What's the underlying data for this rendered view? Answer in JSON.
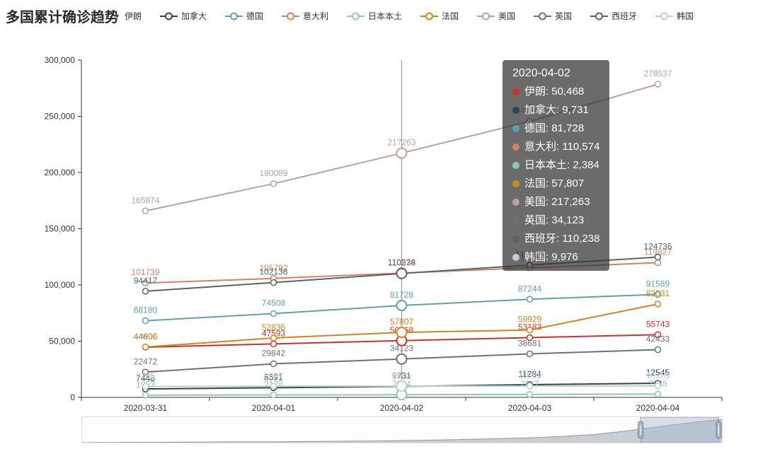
{
  "chart_data": {
    "type": "line",
    "title": "多国累计确诊趋势",
    "x": [
      "2020-03-31",
      "2020-04-01",
      "2020-04-02",
      "2020-04-03",
      "2020-04-04"
    ],
    "series": [
      {
        "key": "iran",
        "name": "伊朗",
        "color": "#c23531",
        "values": [
          44606,
          47593,
          50468,
          53183,
          55743
        ]
      },
      {
        "key": "canada",
        "name": "加拿大",
        "color": "#2f4554",
        "values": [
          7448,
          8591,
          9731,
          11284,
          12545
        ]
      },
      {
        "key": "germany",
        "name": "德国",
        "color": "#61a0a8",
        "values": [
          68180,
          74508,
          81728,
          87244,
          91589
        ]
      },
      {
        "key": "italy",
        "name": "意大利",
        "color": "#d48265",
        "values": [
          101739,
          105792,
          110574,
          115242,
          119827
        ]
      },
      {
        "key": "japan-mainland",
        "name": "日本本土",
        "color": "#91c7ae",
        "values": [
          1953,
          2178,
          2384,
          2617,
          2935
        ]
      },
      {
        "key": "france",
        "name": "法国",
        "color": "#ca8622",
        "values": [
          44806,
          52836,
          57807,
          59929,
          83031
        ]
      },
      {
        "key": "usa",
        "name": "美国",
        "color": "#bda29a",
        "values": [
          165874,
          190089,
          217263,
          245540,
          278537
        ]
      },
      {
        "key": "uk",
        "name": "英国",
        "color": "#6e7074",
        "values": [
          22472,
          29842,
          34123,
          38681,
          42433
        ]
      },
      {
        "key": "spain",
        "name": "西班牙",
        "color": "#546570",
        "values": [
          94417,
          102136,
          110238,
          117710,
          124736
        ]
      },
      {
        "key": "south-korea",
        "name": "韩国",
        "color": "#c4ccd3",
        "values": [
          9786,
          9887,
          9976,
          10062,
          10156
        ]
      }
    ],
    "ylim": [
      0,
      300000
    ],
    "y_ticks": [
      {
        "value": 0,
        "label": "0"
      },
      {
        "value": 50000,
        "label": "50,000"
      },
      {
        "value": 100000,
        "label": "100,000"
      },
      {
        "value": 150000,
        "label": "150,000"
      },
      {
        "value": 200000,
        "label": "200,000"
      },
      {
        "value": 250000,
        "label": "250,000"
      },
      {
        "value": 300000,
        "label": "300,000"
      }
    ],
    "grid": false,
    "legend_position": "top",
    "highlight_index": 2
  },
  "tooltip": {
    "title": "2020-04-02",
    "rows": [
      {
        "key": "iran",
        "name": "伊朗",
        "value": "50,468"
      },
      {
        "key": "canada",
        "name": "加拿大",
        "value": "9,731"
      },
      {
        "key": "germany",
        "name": "德国",
        "value": "81,728"
      },
      {
        "key": "italy",
        "name": "意大利",
        "value": "110,574"
      },
      {
        "key": "japan-mainland",
        "name": "日本本土",
        "value": "2,384"
      },
      {
        "key": "france",
        "name": "法国",
        "value": "57,807"
      },
      {
        "key": "usa",
        "name": "美国",
        "value": "217,263"
      },
      {
        "key": "uk",
        "name": "英国",
        "value": "34,123"
      },
      {
        "key": "spain",
        "name": "西班牙",
        "value": "110,238"
      },
      {
        "key": "south-korea",
        "name": "韩国",
        "value": "9,976"
      }
    ]
  },
  "datazoom": {
    "window": [
      0.873,
      0.995
    ],
    "preview_heights": [
      0,
      0.01,
      0.015,
      0.02,
      0.03,
      0.035,
      0.04,
      0.05,
      0.06,
      0.07,
      0.09,
      0.11,
      0.14,
      0.17,
      0.21,
      0.27,
      0.35,
      0.5,
      0.68,
      0.85,
      1.0
    ]
  }
}
